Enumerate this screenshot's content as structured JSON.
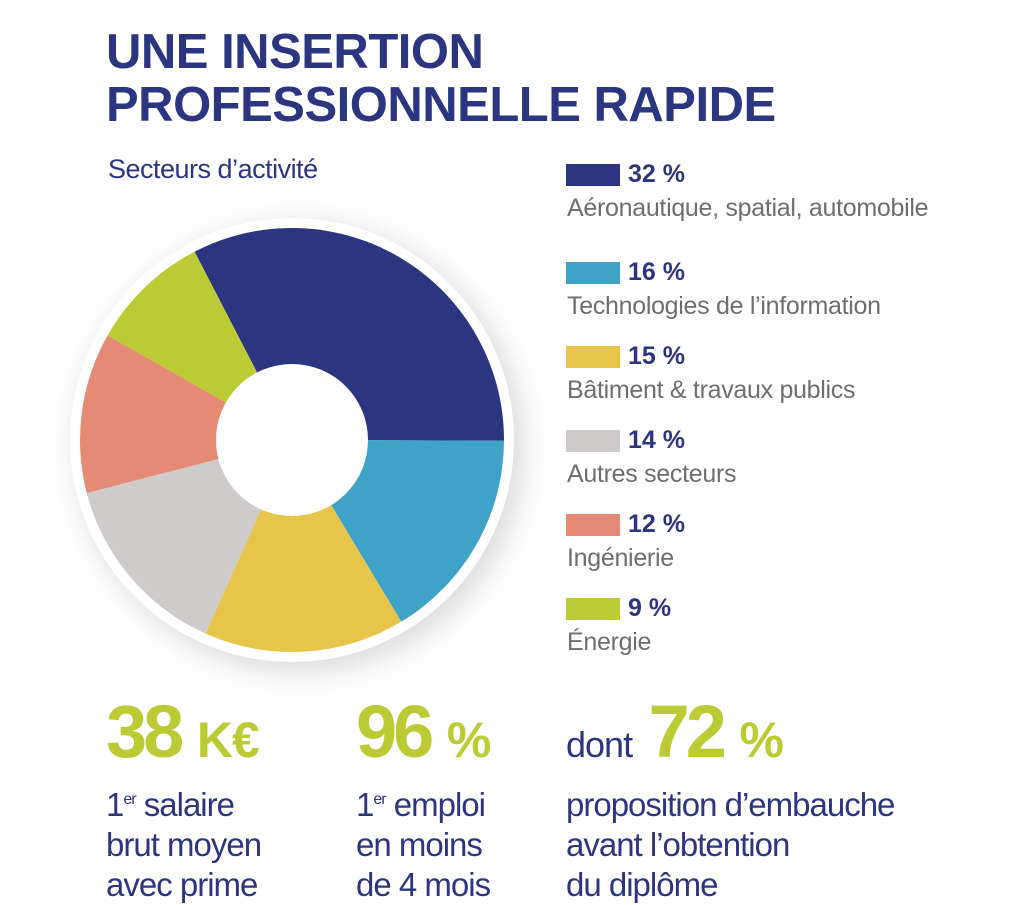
{
  "title_line1": "UNE INSERTION",
  "title_line2": "PROFESSIONNELLE RAPIDE",
  "chart_data": {
    "type": "pie",
    "variant": "donut",
    "title": "Secteurs d’activité",
    "legend_placement": "right",
    "slices": [
      {
        "label": "Aéronautique, spatial, automobile",
        "value": 32,
        "display": "32 %",
        "color": "#2b3580"
      },
      {
        "label": "Technologies de l’information",
        "value": 16,
        "display": "16 %",
        "color": "#3fa3c8"
      },
      {
        "label": "Bâtiment & travaux publics",
        "value": 15,
        "display": "15 %",
        "color": "#e6c54a"
      },
      {
        "label": "Autres secteurs",
        "value": 14,
        "display": "14 %",
        "color": "#cfcbcb"
      },
      {
        "label": "Ingénierie",
        "value": 12,
        "display": "12 %",
        "color": "#e58a74"
      },
      {
        "label": "Énergie",
        "value": 9,
        "display": "9 %",
        "color": "#bccb34"
      }
    ]
  },
  "stats": [
    {
      "value": "38",
      "unit": "K€",
      "sup": "er",
      "lines": [
        "1",
        " salaire",
        "brut moyen",
        "avec prime"
      ]
    },
    {
      "value": "96",
      "unit": "%",
      "sup": "er",
      "lines": [
        "1",
        " emploi",
        "en moins",
        "de 4 mois"
      ]
    },
    {
      "prefix": "dont",
      "value": "72",
      "unit": "%",
      "lines": [
        "proposition d’embauche",
        "avant l’obtention",
        "du diplôme"
      ]
    }
  ]
}
